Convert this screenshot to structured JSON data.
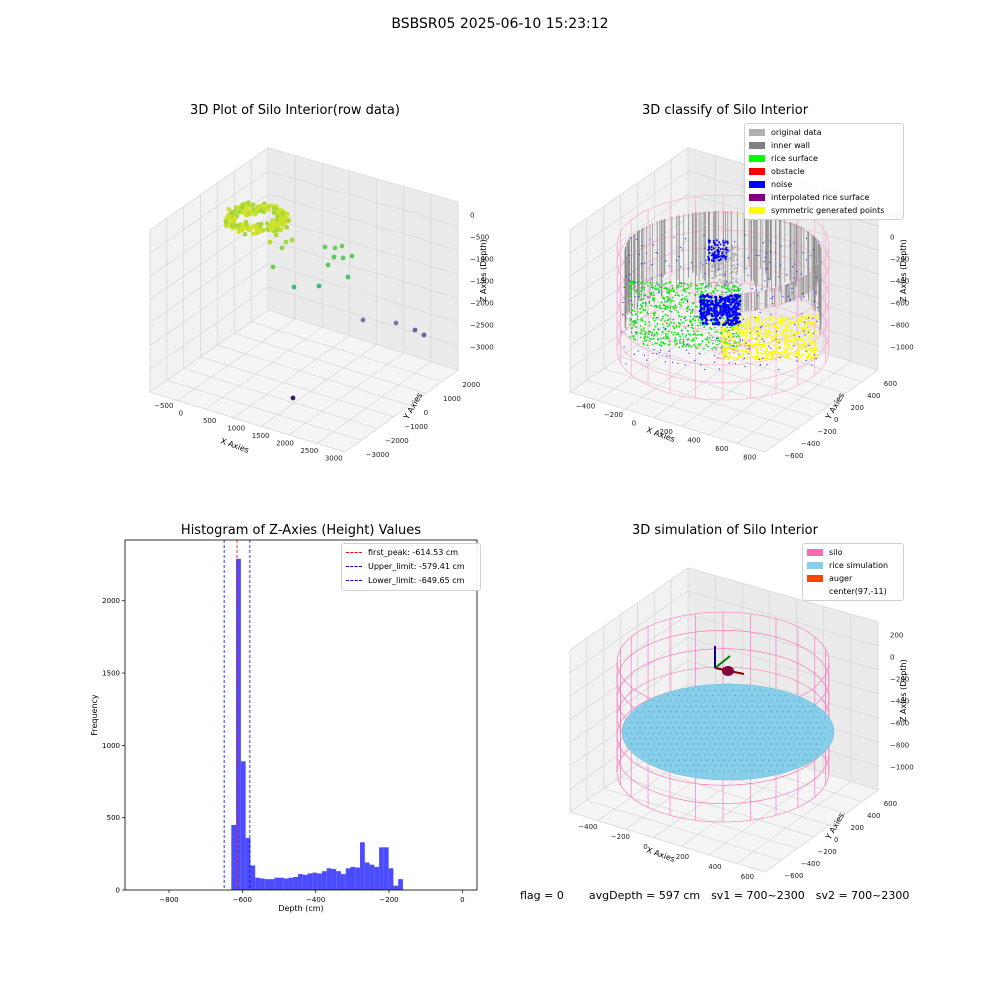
{
  "suptitle": "BSBSR05 2025-06-10 15:23:12",
  "footer": {
    "flag": "flag = 0",
    "avg": "avgDepth = 597 cm",
    "sv1": "sv1 = 700~2300",
    "sv2": "sv2 = 700~2300"
  },
  "colors": {
    "pink": "#ff69b4",
    "skyblue": "#87ceeb",
    "orangered": "#ff4500",
    "hist_blue": "#4b4bff",
    "gray_light": "#b0b0b0",
    "gray": "#808080",
    "green": "#00ff00",
    "red": "#ff0000",
    "blue": "#0000ff",
    "purple": "#800080",
    "yellow": "#ffff00"
  },
  "chart_data": [
    {
      "type": "scatter",
      "title": "3D Plot of Silo Interior(row data)",
      "xlabel": "X Axies",
      "ylabel": "Y Axies",
      "zlabel": "Z Axies (Depth)",
      "x_ticks": [
        "−500",
        "0",
        "500",
        "1000",
        "1500",
        "2000",
        "2500",
        "3000"
      ],
      "y_ticks": [
        "2000",
        "1000",
        "0",
        "−1000",
        "−2000",
        "−3000"
      ],
      "z_ticks": [
        "0",
        "−500",
        "−1000",
        "−1500",
        "−2000",
        "−2500",
        "−3000"
      ]
    },
    {
      "type": "scatter",
      "title": "3D classify of Silo Interior",
      "xlabel": "X Axies",
      "ylabel": "Y Axies",
      "zlabel": "Z Axies (Depth)",
      "x_ticks": [
        "−400",
        "−200",
        "0",
        "200",
        "400",
        "600",
        "800"
      ],
      "y_ticks": [
        "600",
        "400",
        "200",
        "0",
        "−200",
        "−400",
        "−600"
      ],
      "z_ticks": [
        "200",
        "0",
        "−200",
        "−400",
        "−600",
        "−800",
        "−1000"
      ],
      "legend": [
        "original data",
        "inner wall",
        "rice surface",
        "obstacle",
        "noise",
        "interpolated rice surface",
        "symmetric generated points"
      ],
      "legend_colors": [
        "#b0b0b0",
        "#808080",
        "#00ff00",
        "#ff0000",
        "#0000ff",
        "#800080",
        "#ffff00"
      ],
      "legend_position": "top-right"
    },
    {
      "type": "bar",
      "title": "Histogram of Z-Axies (Height) Values",
      "xlabel": "Depth (cm)",
      "ylabel": "Frequency",
      "xlim": [
        -920,
        40
      ],
      "ylim": [
        0,
        2420
      ],
      "x_ticks": [
        -800,
        -600,
        -400,
        -200,
        0
      ],
      "y_ticks": [
        0,
        500,
        1000,
        1500,
        2000
      ],
      "bin_width": 13,
      "bins": [
        {
          "x": -630,
          "v": 450
        },
        {
          "x": -617,
          "v": 2290
        },
        {
          "x": -604,
          "v": 890
        },
        {
          "x": -591,
          "v": 360
        },
        {
          "x": -578,
          "v": 170
        },
        {
          "x": -565,
          "v": 85
        },
        {
          "x": -552,
          "v": 80
        },
        {
          "x": -539,
          "v": 75
        },
        {
          "x": -526,
          "v": 75
        },
        {
          "x": -513,
          "v": 85
        },
        {
          "x": -500,
          "v": 85
        },
        {
          "x": -487,
          "v": 80
        },
        {
          "x": -474,
          "v": 85
        },
        {
          "x": -461,
          "v": 90
        },
        {
          "x": -448,
          "v": 110
        },
        {
          "x": -435,
          "v": 105
        },
        {
          "x": -422,
          "v": 115
        },
        {
          "x": -409,
          "v": 120
        },
        {
          "x": -396,
          "v": 115
        },
        {
          "x": -383,
          "v": 130
        },
        {
          "x": -370,
          "v": 150
        },
        {
          "x": -357,
          "v": 145
        },
        {
          "x": -344,
          "v": 130
        },
        {
          "x": -331,
          "v": 110
        },
        {
          "x": -318,
          "v": 150
        },
        {
          "x": -305,
          "v": 160
        },
        {
          "x": -292,
          "v": 155
        },
        {
          "x": -279,
          "v": 330
        },
        {
          "x": -266,
          "v": 190
        },
        {
          "x": -253,
          "v": 175
        },
        {
          "x": -240,
          "v": 160
        },
        {
          "x": -227,
          "v": 295
        },
        {
          "x": -214,
          "v": 295
        },
        {
          "x": -201,
          "v": 150
        },
        {
          "x": -188,
          "v": 30
        },
        {
          "x": -175,
          "v": 75
        }
      ],
      "vlines": [
        {
          "label": "first_peak: -614.53 cm",
          "x": -614.53,
          "color": "#ff0000"
        },
        {
          "label": "Upper_limit: -579.41 cm",
          "x": -579.41,
          "color": "#0000ff"
        },
        {
          "label": "Lower_limit: -649.65 cm",
          "x": -649.65,
          "color": "#0000ff"
        }
      ],
      "legend_position": "top-right"
    },
    {
      "type": "scatter",
      "title": "3D simulation of Silo Interior",
      "xlabel": "X Axies",
      "ylabel": "Y Axies",
      "zlabel": "Z Axies (Depth)",
      "x_ticks": [
        "−400",
        "−200",
        "0",
        "200",
        "400",
        "600"
      ],
      "y_ticks": [
        "600",
        "400",
        "200",
        "0",
        "−200",
        "−400",
        "−600"
      ],
      "z_ticks": [
        "200",
        "0",
        "−200",
        "−400",
        "−600",
        "−800",
        "−1000"
      ],
      "legend": [
        "silo",
        "rice simulation",
        "auger",
        "center(97,-11)"
      ],
      "legend_colors": [
        "#ff69b4",
        "#87ceeb",
        "#ff4500",
        "#ffffff"
      ],
      "legend_position": "top-right"
    }
  ]
}
